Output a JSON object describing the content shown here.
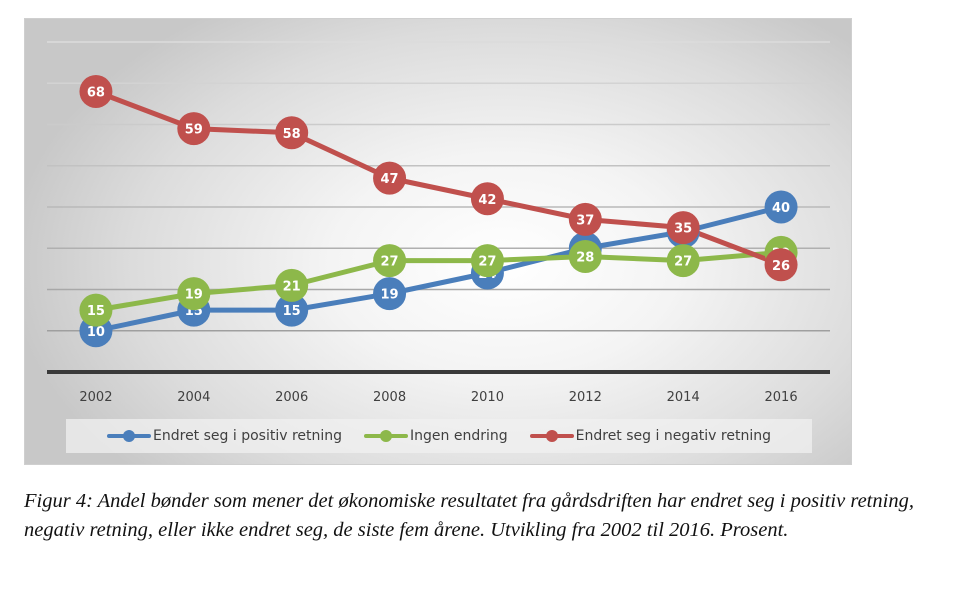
{
  "chart_data": {
    "type": "line",
    "title": "",
    "xlabel": "",
    "ylabel": "",
    "categories": [
      "2002",
      "2004",
      "2006",
      "2008",
      "2010",
      "2012",
      "2014",
      "2016"
    ],
    "ylim": [
      0,
      80
    ],
    "y_gridlines": [
      10,
      20,
      30,
      40,
      50,
      60,
      70,
      80
    ],
    "grid": true,
    "y_tick_labels_visible": false,
    "data_labels": true,
    "legend_position": "bottom",
    "series": [
      {
        "name": "Endret seg i positiv retning",
        "color": "#4a7ebb",
        "values": [
          10,
          15,
          15,
          19,
          24,
          30,
          34,
          40
        ]
      },
      {
        "name": "Ingen endring",
        "color": "#8db84a",
        "values": [
          15,
          19,
          21,
          27,
          27,
          28,
          27,
          29
        ]
      },
      {
        "name": "Endret seg i negativ retning",
        "color": "#c0504d",
        "values": [
          68,
          59,
          58,
          47,
          42,
          37,
          35,
          26
        ]
      }
    ]
  },
  "caption": "Figur 4: Andel bønder som mener det økonomiske resultatet fra gårdsdriften har endret seg i positiv retning, negativ retning, eller ikke endret seg, de siste fem årene. Utvikling fra 2002 til 2016. Prosent."
}
